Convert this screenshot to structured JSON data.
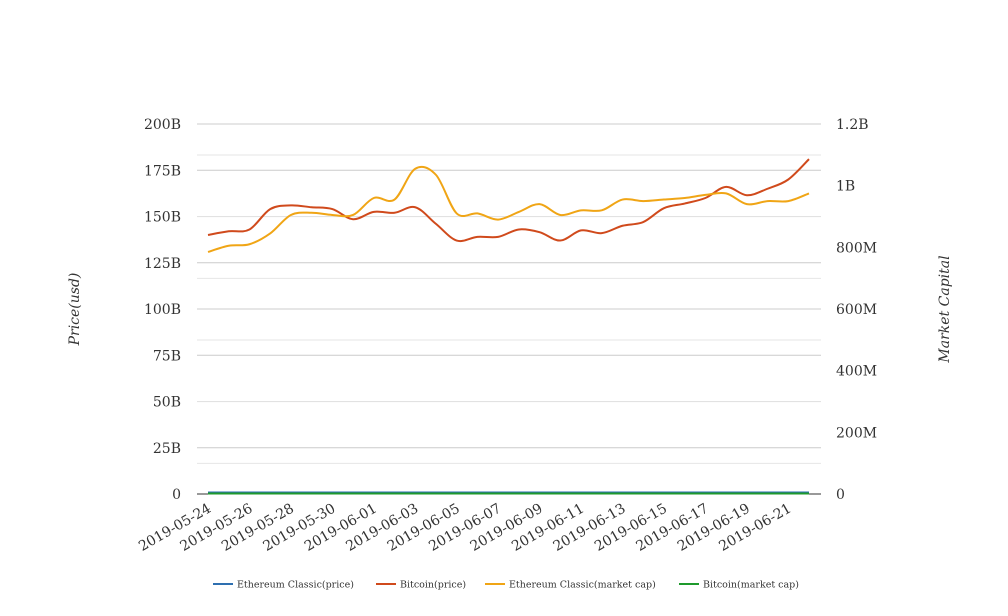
{
  "chart_data": {
    "type": "line",
    "title": "",
    "ylabel_left": "Price(usd)",
    "ylabel_right": "Market Capital",
    "ylim_left": [
      0,
      200000000000
    ],
    "ylim_right": [
      0,
      1200000000
    ],
    "left_ticks": [
      {
        "value": 0,
        "label": "0"
      },
      {
        "value": 25000000000,
        "label": "25B"
      },
      {
        "value": 50000000000,
        "label": "50B"
      },
      {
        "value": 75000000000,
        "label": "75B"
      },
      {
        "value": 100000000000,
        "label": "100B"
      },
      {
        "value": 125000000000,
        "label": "125B"
      },
      {
        "value": 150000000000,
        "label": "150B"
      },
      {
        "value": 175000000000,
        "label": "175B"
      },
      {
        "value": 200000000000,
        "label": "200B"
      }
    ],
    "right_ticks": [
      {
        "value": 0,
        "label": "0"
      },
      {
        "value": 200000000,
        "label": "200M"
      },
      {
        "value": 400000000,
        "label": "400M"
      },
      {
        "value": 600000000,
        "label": "600M"
      },
      {
        "value": 800000000,
        "label": "800M"
      },
      {
        "value": 1000000000,
        "label": "1B"
      },
      {
        "value": 1200000000,
        "label": "1.2B"
      }
    ],
    "x": [
      "2019-05-24",
      "2019-05-25",
      "2019-05-26",
      "2019-05-27",
      "2019-05-28",
      "2019-05-29",
      "2019-05-30",
      "2019-05-31",
      "2019-06-01",
      "2019-06-02",
      "2019-06-03",
      "2019-06-04",
      "2019-06-05",
      "2019-06-06",
      "2019-06-07",
      "2019-06-08",
      "2019-06-09",
      "2019-06-10",
      "2019-06-11",
      "2019-06-12",
      "2019-06-13",
      "2019-06-14",
      "2019-06-15",
      "2019-06-16",
      "2019-06-17",
      "2019-06-18",
      "2019-06-19",
      "2019-06-20",
      "2019-06-21",
      "2019-06-22"
    ],
    "x_tick_labels": [
      "2019-05-24",
      "2019-05-26",
      "2019-05-28",
      "2019-05-30",
      "2019-06-01",
      "2019-06-03",
      "2019-06-05",
      "2019-06-07",
      "2019-06-09",
      "2019-06-11",
      "2019-06-13",
      "2019-06-15",
      "2019-06-17",
      "2019-06-19",
      "2019-06-21"
    ],
    "series": [
      {
        "name": "Ethereum Classic(price)",
        "axis": "left",
        "color": "#2e6fb0",
        "values": [
          800000000,
          800000000,
          800000000,
          800000000,
          800000000,
          800000000,
          800000000,
          800000000,
          800000000,
          800000000,
          800000000,
          800000000,
          800000000,
          800000000,
          800000000,
          800000000,
          800000000,
          800000000,
          800000000,
          800000000,
          800000000,
          800000000,
          800000000,
          800000000,
          800000000,
          800000000,
          800000000,
          800000000,
          800000000,
          800000000
        ]
      },
      {
        "name": "Bitcoin(price)",
        "axis": "left",
        "color": "#d04a1c",
        "values": [
          140000000000,
          142000000000,
          143000000000,
          154000000000,
          156000000000,
          155000000000,
          154000000000,
          148500000000,
          152500000000,
          152000000000,
          155000000000,
          146000000000,
          137000000000,
          139000000000,
          139000000000,
          143000000000,
          141500000000,
          137000000000,
          142500000000,
          141000000000,
          145000000000,
          147000000000,
          154500000000,
          157000000000,
          160000000000,
          166000000000,
          161500000000,
          165000000000,
          170000000000,
          181000000000
        ]
      },
      {
        "name": "Ethereum Classic(market cap)",
        "axis": "right",
        "color": "#f0a515",
        "values": [
          785000000,
          805000000,
          810000000,
          845000000,
          905000000,
          912000000,
          905000000,
          905000000,
          960000000,
          955000000,
          1055000000,
          1035000000,
          910000000,
          910000000,
          890000000,
          915000000,
          940000000,
          905000000,
          920000000,
          920000000,
          955000000,
          950000000,
          955000000,
          960000000,
          970000000,
          975000000,
          940000000,
          950000000,
          950000000,
          975000000
        ]
      },
      {
        "name": "Bitcoin(market cap)",
        "axis": "right",
        "color": "#1e9a2c",
        "values": [
          1000000,
          1000000,
          1000000,
          1000000,
          1000000,
          1000000,
          1000000,
          1000000,
          1000000,
          1000000,
          1000000,
          1000000,
          1000000,
          1000000,
          1000000,
          1000000,
          1000000,
          1000000,
          1000000,
          1000000,
          1000000,
          1000000,
          1000000,
          1000000,
          1000000,
          1000000,
          1000000,
          1000000,
          1000000,
          1000000
        ]
      }
    ],
    "grid": true,
    "legend_position": "bottom"
  }
}
